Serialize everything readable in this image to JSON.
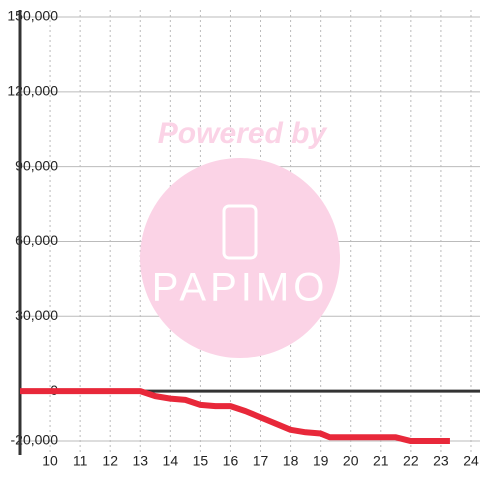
{
  "chart_data": {
    "type": "line",
    "watermark": {
      "heading": "Powered by",
      "brand": "PAPIMO"
    },
    "x": [
      9,
      13,
      13.5,
      14,
      14.5,
      15,
      15.5,
      16,
      16.5,
      17,
      17.5,
      18,
      18.5,
      19,
      19.3,
      20,
      21,
      21.5,
      22,
      23.3
    ],
    "series": [
      {
        "color": "#e8283a",
        "values": [
          0,
          0,
          -2000,
          -3000,
          -3500,
          -5500,
          -6000,
          -6000,
          -8000,
          -10500,
          -13000,
          -15500,
          -16500,
          -17000,
          -18500,
          -18500,
          -18500,
          -18500,
          -20000,
          -20000
        ]
      }
    ],
    "xlim": [
      9,
      24.3
    ],
    "xticks": [
      10,
      11,
      12,
      13,
      14,
      15,
      16,
      17,
      18,
      19,
      20,
      21,
      22,
      23,
      24
    ],
    "ylim": [
      -25600,
      152800
    ],
    "yticks": [
      {
        "value": -20000,
        "label": "-20,000"
      },
      0,
      {
        "value": 30000,
        "label": "30,000"
      },
      {
        "value": 60000,
        "label": "60,000"
      },
      {
        "value": 90000,
        "label": "90,000"
      },
      {
        "value": 120000,
        "label": "120,000"
      },
      {
        "value": 150000,
        "label": "150,000"
      }
    ],
    "grid": true
  }
}
